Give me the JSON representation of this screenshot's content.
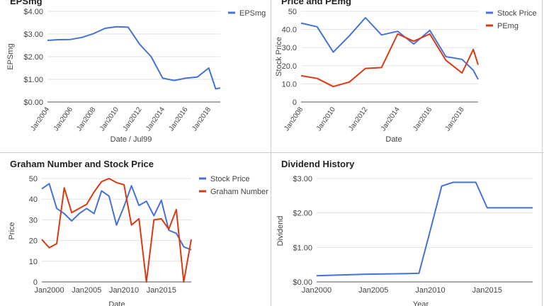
{
  "colors": {
    "blue": "#4472d6",
    "red": "#dc3912",
    "grid": "#e3e3e3",
    "axis": "#555555",
    "text": "#444444"
  },
  "chart_data": [
    {
      "type": "line",
      "title": "EPSmg",
      "xlabel": "Date / Jul99",
      "ylabel": "EPSmg",
      "ylim": [
        0,
        4
      ],
      "xlim": [
        2004,
        2019
      ],
      "yticks": [
        0,
        1,
        2,
        3,
        4
      ],
      "ytick_labels": [
        "$0.00",
        "$1.00",
        "$2.00",
        "$3.00",
        "$4.00"
      ],
      "xticks": [
        2004,
        2006,
        2008,
        2010,
        2012,
        2014,
        2016,
        2018
      ],
      "xtick_labels": [
        "Jan2004",
        "Jan2006",
        "Jan2008",
        "Jan2010",
        "Jan2012",
        "Jan2014",
        "Jan2016",
        "Jan2018"
      ],
      "x_tick_rotate": true,
      "legend": "right",
      "series": [
        {
          "name": "EPSmg",
          "color": "#4472d6",
          "x": [
            2004,
            2005,
            2006,
            2007,
            2008,
            2009,
            2010,
            2011,
            2012,
            2013,
            2014,
            2015,
            2016,
            2017,
            2018,
            2018.6,
            2019
          ],
          "values": [
            2.72,
            2.75,
            2.76,
            2.85,
            3.02,
            3.25,
            3.32,
            3.3,
            2.55,
            2.0,
            1.05,
            0.95,
            1.05,
            1.1,
            1.5,
            0.58,
            0.62
          ]
        }
      ]
    },
    {
      "type": "line",
      "title": "Price and PEmg",
      "xlabel": "Date",
      "ylabel": "Stock Price",
      "ylim": [
        0,
        50
      ],
      "xlim": [
        2008,
        2019
      ],
      "yticks": [
        0,
        10,
        20,
        30,
        40,
        50
      ],
      "ytick_labels": [
        "0",
        "10.0",
        "20.0",
        "30.0",
        "40.0",
        "50"
      ],
      "xticks": [
        2008,
        2010,
        2012,
        2014,
        2016,
        2018
      ],
      "xtick_labels": [
        "Jan2008",
        "Jan2010",
        "Jan2012",
        "Jan2014",
        "Jan2016",
        "Jan2018"
      ],
      "x_tick_rotate": true,
      "legend": "right",
      "series": [
        {
          "name": "Stock Price",
          "color": "#4472d6",
          "x": [
            2008,
            2009,
            2010,
            2011,
            2012,
            2013,
            2014,
            2015,
            2016,
            2017,
            2018,
            2018.7,
            2019
          ],
          "values": [
            43.5,
            41.5,
            27.5,
            36.5,
            46.5,
            37,
            39,
            32,
            39.5,
            25,
            23.5,
            17.5,
            12.5
          ]
        },
        {
          "name": "PEmg",
          "color": "#dc3912",
          "x": [
            2008,
            2009,
            2010,
            2011,
            2012,
            2013,
            2014,
            2015,
            2016,
            2017,
            2018,
            2018.7,
            2019
          ],
          "values": [
            14.5,
            13,
            8.5,
            11,
            18.5,
            19,
            37.5,
            33.5,
            37.5,
            23,
            16,
            29,
            20.5
          ]
        }
      ]
    },
    {
      "type": "line",
      "title": "Graham Number and Stock Price",
      "xlabel": "Date",
      "ylabel": "Price",
      "ylim": [
        0,
        50
      ],
      "xlim": [
        1999,
        2019
      ],
      "yticks": [
        0,
        10,
        20,
        30,
        40,
        50
      ],
      "ytick_labels": [
        "0",
        "10",
        "20",
        "30",
        "40",
        "50"
      ],
      "xticks": [
        2000,
        2005,
        2010,
        2015
      ],
      "xtick_labels": [
        "Jan2000",
        "Jan2005",
        "Jan2010",
        "Jan2015"
      ],
      "x_tick_rotate": false,
      "legend": "right",
      "series": [
        {
          "name": "Stock Price",
          "color": "#4472d6",
          "x": [
            1999,
            2000,
            2001,
            2002,
            2003,
            2004,
            2005,
            2006,
            2007,
            2008,
            2009,
            2010,
            2011,
            2012,
            2013,
            2014,
            2015,
            2016,
            2017,
            2018,
            2019
          ],
          "values": [
            45,
            47.5,
            35.5,
            33,
            29.5,
            33,
            35.5,
            33,
            44,
            41.5,
            27.5,
            36.5,
            46.5,
            37,
            39,
            32,
            39.5,
            25,
            23.5,
            17,
            15.5
          ]
        },
        {
          "name": "Graham Number",
          "color": "#dc3912",
          "x": [
            1999,
            2000,
            2001,
            2002,
            2003,
            2004,
            2005,
            2006,
            2007,
            2008,
            2009,
            2010,
            2011,
            2012,
            2013,
            2014,
            2015,
            2016,
            2017,
            2018,
            2019
          ],
          "values": [
            20.5,
            16.5,
            18.5,
            45.5,
            33.5,
            35.5,
            37.5,
            43.5,
            48.5,
            50,
            48,
            47,
            27.5,
            30.5,
            0,
            30,
            30.5,
            25.5,
            35,
            0,
            20.5
          ]
        }
      ]
    },
    {
      "type": "line",
      "title": "Dividend History",
      "xlabel": "Year",
      "ylabel": "Dividend",
      "ylim": [
        0,
        3
      ],
      "xlim": [
        2000,
        2019
      ],
      "yticks": [
        0,
        1,
        2,
        3
      ],
      "ytick_labels": [
        "$0.00",
        "$1.00",
        "$2.00",
        "$3.00"
      ],
      "xticks": [
        2000,
        2005,
        2010,
        2015
      ],
      "xtick_labels": [
        "Jan2000",
        "Jan2005",
        "Jan2010",
        "Jan2015"
      ],
      "x_tick_rotate": false,
      "legend": "none",
      "series": [
        {
          "color": "#4472d6",
          "x": [
            2000,
            2002,
            2004,
            2006,
            2008,
            2009,
            2010,
            2011,
            2012,
            2013,
            2014,
            2015,
            2016,
            2017,
            2018,
            2019
          ],
          "values": [
            0.18,
            0.2,
            0.22,
            0.23,
            0.24,
            0.25,
            1.5,
            2.78,
            2.89,
            2.89,
            2.89,
            2.15,
            2.15,
            2.15,
            2.15,
            2.15
          ]
        }
      ]
    }
  ]
}
